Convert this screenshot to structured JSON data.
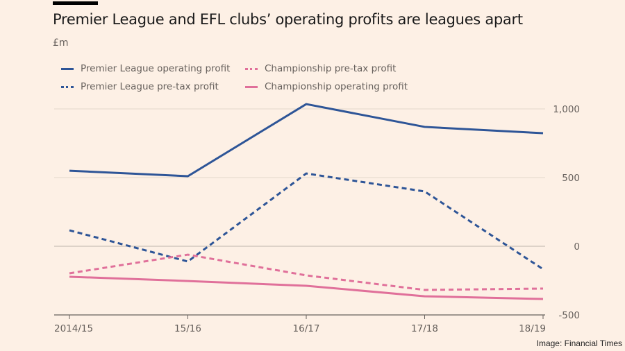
{
  "chart_data": {
    "type": "line",
    "title": "Premier League and EFL clubs’ operating profits are leagues apart",
    "ylabel": "£m",
    "categories": [
      "2014/15",
      "15/16",
      "16/17",
      "17/18",
      "18/19"
    ],
    "ylim": [
      -500,
      1000
    ],
    "yticks": [
      1000,
      500,
      0,
      -500
    ],
    "ytick_labels": [
      "1,000",
      "500",
      "0",
      "-500"
    ],
    "grid": true,
    "legend_position": "top-left",
    "series": [
      {
        "name": "Premier League operating profit",
        "values": [
          550,
          510,
          1035,
          869,
          823
        ],
        "color": "#2E5597",
        "dash": false
      },
      {
        "name": "Premier League pre-tax profit",
        "values": [
          116,
          -111,
          530,
          399,
          -167
        ],
        "color": "#2E5597",
        "dash": true
      },
      {
        "name": "Championship pre-tax profit",
        "values": [
          -197,
          -61,
          -212,
          -318,
          -308
        ],
        "color": "#E0709A",
        "dash": true
      },
      {
        "name": "Championship operating profit",
        "values": [
          -222,
          -253,
          -288,
          -364,
          -384
        ],
        "color": "#E0709A",
        "dash": false
      }
    ]
  },
  "credit": "Image: Financial Times"
}
